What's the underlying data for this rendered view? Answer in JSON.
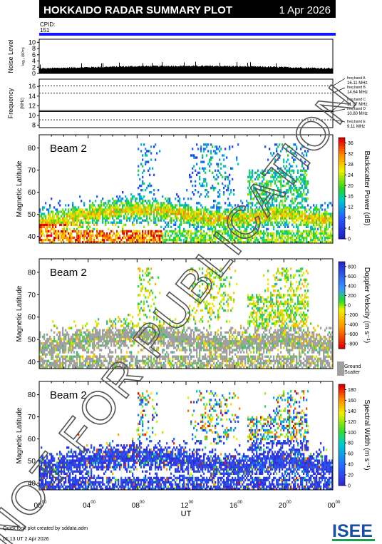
{
  "header": {
    "title": "HOKKAIDO RADAR SUMMARY PLOT",
    "date": "1 Apr 2026",
    "cpid_label": "CPID:",
    "cpid_value": "151",
    "bar_color": "#1515ff"
  },
  "noise_panel": {
    "ylabel": "Noise Level",
    "ylabel_sub": "log₁₀ (W/m)",
    "yticks": [
      "0",
      "2",
      "4",
      "6",
      "8",
      "10"
    ],
    "ylim": [
      0,
      11
    ]
  },
  "frequency_panel": {
    "ylabel": "Frequency",
    "ylabel_sub": "(MHz)",
    "yticks": [
      "8",
      "10",
      "12",
      "14",
      "16"
    ],
    "ylim": [
      7.5,
      17.5
    ],
    "bands": [
      {
        "name": "freq band A",
        "value": "16.11 MHz",
        "mhz": 16.11
      },
      {
        "name": "freq band B",
        "value": "14.64 MHz",
        "mhz": 14.64
      },
      {
        "name": "freq band C",
        "value": "11.07 MHz",
        "mhz": 11.07
      },
      {
        "name": "freq band D",
        "value": "10.80 MHz",
        "mhz": 10.8
      },
      {
        "name": "freq band E",
        "value": "9.11 MHz",
        "mhz": 9.11
      }
    ]
  },
  "chart_data": [
    {
      "type": "heatmap",
      "beam_label": "Beam 2",
      "ylabel": "Magnetic Latitude",
      "ylim": [
        37,
        86
      ],
      "yticks": [
        "40",
        "50",
        "60",
        "70",
        "80"
      ],
      "xlabel": "UT",
      "colorbar_label": "Backscatter Power (dB)",
      "colorbar_ticks": [
        "0",
        "4",
        "8",
        "12",
        "16",
        "20",
        "24",
        "28",
        "32",
        "36"
      ],
      "colorbar_range": [
        0,
        38
      ]
    },
    {
      "type": "heatmap",
      "beam_label": "Beam 2",
      "ylabel": "Magnetic Latitude",
      "ylim": [
        37,
        86
      ],
      "yticks": [
        "40",
        "50",
        "60",
        "70",
        "80"
      ],
      "xlabel": "UT",
      "colorbar_label": "Doppler Velocity (m s⁻¹)",
      "colorbar_ticks": [
        "800",
        "600",
        "400",
        "200",
        "0",
        "-200",
        "-400",
        "-600",
        "-800"
      ],
      "colorbar_range": [
        -900,
        900
      ],
      "ground_scatter_label": [
        "Ground",
        "Scatter"
      ]
    },
    {
      "type": "heatmap",
      "beam_label": "Beam 2",
      "ylabel": "Magnetic Latitude",
      "ylim": [
        37,
        86
      ],
      "yticks": [
        "40",
        "50",
        "60",
        "70",
        "80"
      ],
      "xlabel": "UT",
      "colorbar_label": "Spectral Width (m s⁻¹)",
      "colorbar_ticks": [
        "0",
        "20",
        "40",
        "60",
        "80",
        "100",
        "120",
        "140",
        "160",
        "180"
      ],
      "colorbar_range": [
        0,
        190
      ]
    }
  ],
  "x_axis": {
    "label": "UT",
    "ticks": [
      "00",
      "04",
      "08",
      "12",
      "16",
      "20",
      "00"
    ],
    "tick_superscript": "00",
    "hours": [
      0,
      4,
      8,
      12,
      16,
      20,
      24
    ]
  },
  "watermark": "NOT FOR PUBLICATION",
  "footer": {
    "credit": "Quick look plot created by sddata.adm",
    "timestamp": "01:13 UT  2 Apr 2026",
    "logo_text": "ISEE",
    "logo_colors": [
      "#1a4fa0",
      "#1ca04a"
    ]
  }
}
